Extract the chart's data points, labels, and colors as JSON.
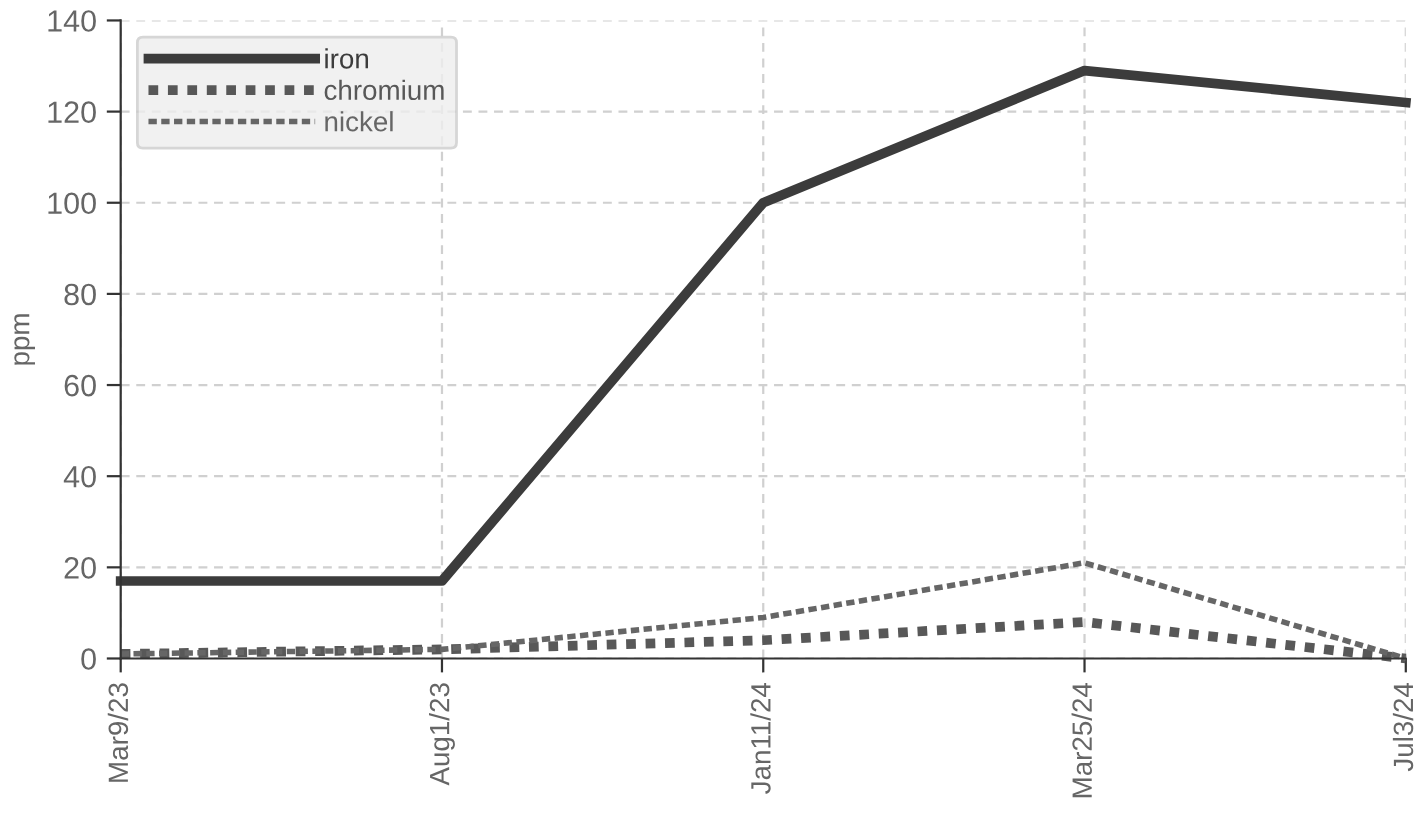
{
  "chart_data": {
    "type": "line",
    "ylabel": "ppm",
    "categories": [
      "Mar9/23",
      "Aug1/23",
      "Jan11/24",
      "Mar25/24",
      "Jul3/24"
    ],
    "series": [
      {
        "name": "iron",
        "color": "#3c3c3c",
        "line_style": "solid",
        "values": [
          17,
          17,
          100,
          129,
          122
        ]
      },
      {
        "name": "chromium",
        "color": "#585858",
        "line_style": "dotted",
        "values": [
          1,
          2,
          4,
          8,
          0
        ]
      },
      {
        "name": "nickel",
        "color": "#666666",
        "line_style": "dashed",
        "values": [
          1,
          2,
          9,
          21,
          0
        ]
      }
    ],
    "ylim": [
      0,
      140
    ],
    "yticks": [
      0,
      20,
      40,
      60,
      80,
      100,
      120,
      140
    ],
    "grid": true,
    "legend": "top left",
    "marker": "none"
  }
}
